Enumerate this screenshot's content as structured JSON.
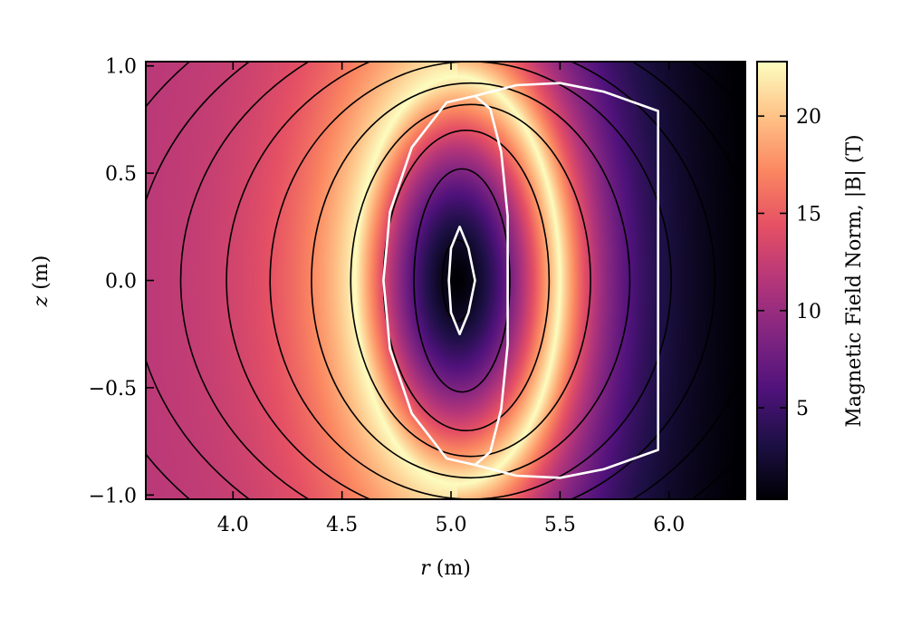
{
  "chart_data": {
    "type": "heatmap",
    "title": "",
    "xlabel": {
      "var": "r",
      "unit": " (m)"
    },
    "ylabel": {
      "var": "z",
      "unit": " (m)"
    },
    "xlim": [
      3.6,
      6.35
    ],
    "ylim": [
      -1.02,
      1.02
    ],
    "xticks": [
      {
        "value": 4.0,
        "label": "4.0"
      },
      {
        "value": 4.5,
        "label": "4.5"
      },
      {
        "value": 5.0,
        "label": "5.0"
      },
      {
        "value": 5.5,
        "label": "5.5"
      },
      {
        "value": 6.0,
        "label": "6.0"
      }
    ],
    "yticks": [
      {
        "value": 1.0,
        "label": "1.0"
      },
      {
        "value": 0.5,
        "label": "0.5"
      },
      {
        "value": 0.0,
        "label": "0.0"
      },
      {
        "value": -0.5,
        "label": "−0.5"
      },
      {
        "value": -1.0,
        "label": "−1.0"
      }
    ],
    "colormap": "magma",
    "colorbar": {
      "label": "Magnetic Field Norm, |B| (T)",
      "range": [
        0.3,
        22.8
      ],
      "ticks": [
        {
          "value": 5,
          "label": "5"
        },
        {
          "value": 10,
          "label": "10"
        },
        {
          "value": 15,
          "label": "15"
        },
        {
          "value": 20,
          "label": "20"
        }
      ]
    },
    "field": {
      "description_center": {
        "r": 5.03,
        "z": 0.0
      },
      "minimum": 0.3,
      "peak_ring_max": 22.8,
      "peak_ring_rx": 0.47,
      "peak_ring_rz": 0.95,
      "outer_value_left": 11.5,
      "outer_value_right": 2.0
    },
    "contour_lines": {
      "color": "#000000",
      "semi_axes_r": [
        0.07,
        0.22,
        0.38,
        0.55,
        0.73,
        0.92,
        1.12,
        1.33,
        1.55,
        1.78
      ],
      "semi_axes_z": [
        0.19,
        0.52,
        0.7,
        0.82,
        0.92,
        1.02,
        1.12,
        1.23,
        1.35,
        1.48
      ]
    },
    "white_boundaries": {
      "color": "#ffffff",
      "inner_coil": [
        [
          5.04,
          0.25
        ],
        [
          5.08,
          0.15
        ],
        [
          5.11,
          0.0
        ],
        [
          5.08,
          -0.15
        ],
        [
          5.04,
          -0.25
        ],
        [
          5.0,
          -0.15
        ],
        [
          4.99,
          0.0
        ],
        [
          5.0,
          0.15
        ]
      ],
      "plasma_outline": [
        [
          5.11,
          0.86
        ],
        [
          5.18,
          0.8
        ],
        [
          5.23,
          0.6
        ],
        [
          5.26,
          0.3
        ],
        [
          5.26,
          0.0
        ],
        [
          5.26,
          -0.3
        ],
        [
          5.23,
          -0.6
        ],
        [
          5.18,
          -0.8
        ],
        [
          5.11,
          -0.86
        ],
        [
          4.98,
          -0.83
        ],
        [
          4.82,
          -0.62
        ],
        [
          4.72,
          -0.32
        ],
        [
          4.69,
          0.0
        ],
        [
          4.72,
          0.32
        ],
        [
          4.82,
          0.62
        ],
        [
          4.98,
          0.83
        ]
      ],
      "outer_box": [
        [
          5.11,
          0.86
        ],
        [
          5.3,
          0.91
        ],
        [
          5.5,
          0.92
        ],
        [
          5.7,
          0.88
        ],
        [
          5.95,
          0.79
        ],
        [
          5.95,
          -0.79
        ],
        [
          5.7,
          -0.88
        ],
        [
          5.5,
          -0.92
        ],
        [
          5.3,
          -0.91
        ],
        [
          5.11,
          -0.86
        ]
      ]
    }
  }
}
